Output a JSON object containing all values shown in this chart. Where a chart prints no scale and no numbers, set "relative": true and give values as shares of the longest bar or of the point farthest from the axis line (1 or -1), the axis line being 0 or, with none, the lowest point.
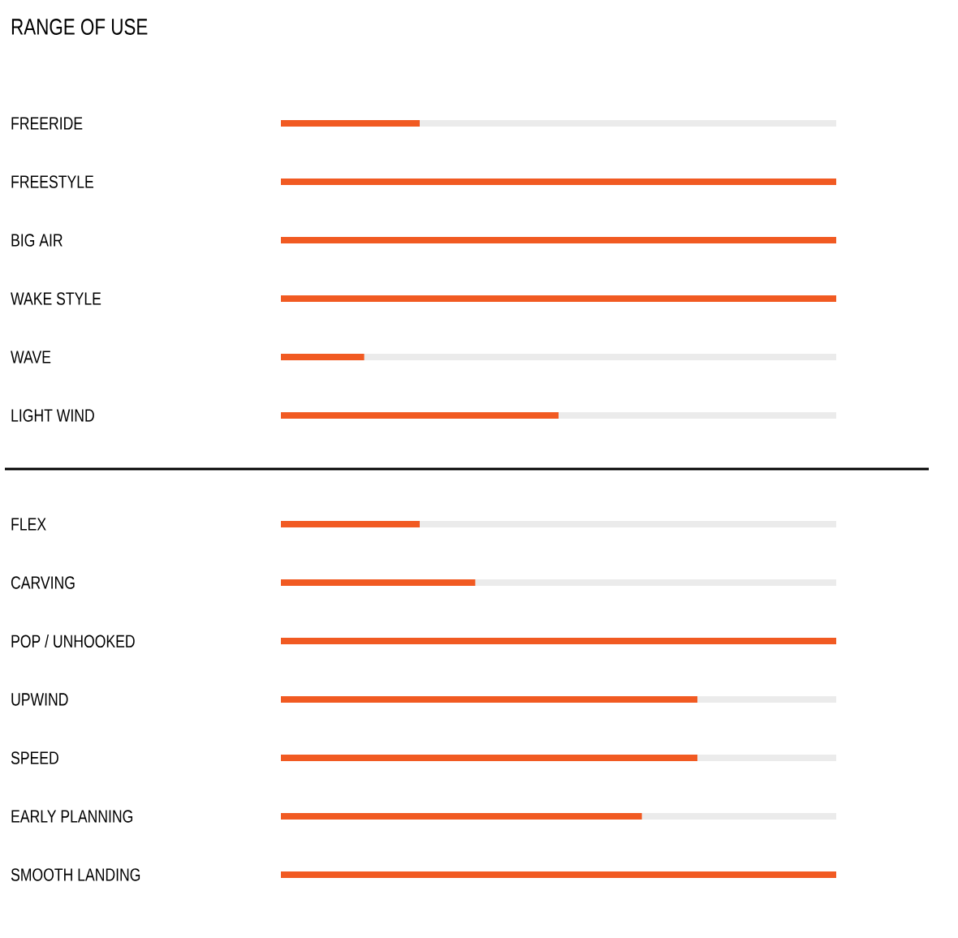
{
  "chart_data": [
    {
      "type": "bar",
      "orientation": "horizontal",
      "relative": true,
      "title": "RANGE OF USE",
      "categories": [
        "FREERIDE",
        "FREESTYLE",
        "BIG AIR",
        "WAKE STYLE",
        "WAVE",
        "LIGHT WIND"
      ],
      "values": [
        0.25,
        1,
        1,
        1,
        0.15,
        0.5
      ],
      "color": "#f15a22"
    },
    {
      "type": "bar",
      "orientation": "horizontal",
      "relative": true,
      "categories": [
        "FLEX",
        "CARVING",
        "POP / UNHOOKED",
        "UPWIND",
        "SPEED",
        "EARLY PLANNING",
        "SMOOTH LANDING"
      ],
      "values": [
        0.25,
        0.35,
        1,
        0.75,
        0.75,
        0.65,
        1
      ],
      "color": "#f15a22"
    }
  ]
}
